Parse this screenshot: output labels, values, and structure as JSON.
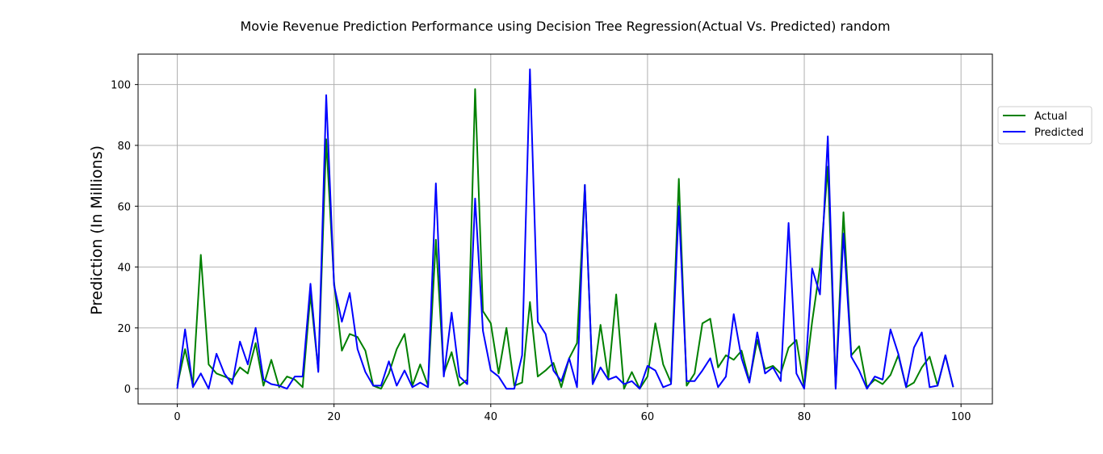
{
  "chart_data": {
    "type": "line",
    "title": "Movie Revenue Prediction Performance using Decision Tree Regression(Actual Vs. Predicted) random",
    "xlabel": "",
    "ylabel": "Prediction (In Millions)",
    "xlim": [
      -5,
      104
    ],
    "ylim": [
      -5,
      110
    ],
    "xticks": [
      0,
      20,
      40,
      60,
      80,
      100
    ],
    "yticks": [
      0,
      20,
      40,
      60,
      80,
      100
    ],
    "grid": true,
    "legend_position": "right",
    "x": [
      0,
      1,
      2,
      3,
      4,
      5,
      6,
      7,
      8,
      9,
      10,
      11,
      12,
      13,
      14,
      15,
      16,
      17,
      18,
      19,
      20,
      21,
      22,
      23,
      24,
      25,
      26,
      27,
      28,
      29,
      30,
      31,
      32,
      33,
      34,
      35,
      36,
      37,
      38,
      39,
      40,
      41,
      42,
      43,
      44,
      45,
      46,
      47,
      48,
      49,
      50,
      51,
      52,
      53,
      54,
      55,
      56,
      57,
      58,
      59,
      60,
      61,
      62,
      63,
      64,
      65,
      66,
      67,
      68,
      69,
      70,
      71,
      72,
      73,
      74,
      75,
      76,
      77,
      78,
      79,
      80,
      81,
      82,
      83,
      84,
      85,
      86,
      87,
      88,
      89,
      90,
      91,
      92,
      93,
      94,
      95,
      96,
      97,
      98,
      99
    ],
    "series": [
      {
        "name": "Actual",
        "color": "#008000",
        "values": [
          1,
          13,
          1,
          44,
          8,
          5,
          4,
          3,
          7,
          5,
          15,
          1,
          9.5,
          0.5,
          4,
          3,
          0.5,
          31,
          6,
          82,
          35,
          12.5,
          18,
          17,
          12.5,
          1,
          0,
          5,
          13,
          18,
          1,
          8,
          1,
          49,
          5,
          12,
          1,
          3,
          98.5,
          25.5,
          21.5,
          5,
          20,
          1,
          2,
          28.5,
          4,
          6,
          8.5,
          0.5,
          10,
          15,
          67,
          1.5,
          21,
          3.5,
          31,
          0,
          5.5,
          0,
          4,
          21.5,
          8,
          2,
          69,
          1,
          5,
          21.5,
          23,
          7,
          11,
          9.5,
          12.5,
          2.5,
          16,
          6.5,
          7.5,
          5,
          13.5,
          16,
          0.5,
          22,
          40,
          73,
          0.5,
          58,
          11,
          14,
          0.5,
          3,
          1.5,
          4.5,
          11,
          0.5,
          2,
          7,
          10.5,
          1,
          11,
          0.5
        ]
      },
      {
        "name": "Predicted",
        "color": "#0000ff",
        "values": [
          0,
          19.5,
          0.5,
          5,
          0,
          11.5,
          5,
          1.5,
          15.5,
          8,
          20,
          3,
          1.5,
          1,
          0,
          4,
          4,
          34.5,
          5.5,
          96.5,
          34,
          22,
          31.5,
          13,
          5.5,
          1,
          1,
          9,
          1,
          6,
          0.5,
          2,
          0.5,
          67.5,
          4,
          25,
          4,
          1.5,
          62.5,
          19,
          6,
          4,
          0,
          0,
          11,
          105,
          22,
          18,
          6,
          2.5,
          10,
          0.5,
          67,
          1.5,
          7,
          3,
          4,
          1.5,
          2.5,
          0,
          7.5,
          6,
          0.5,
          1.5,
          60,
          2.5,
          2.5,
          6,
          10,
          0.5,
          4,
          24.5,
          10,
          2,
          18.5,
          5,
          7,
          2.5,
          54.5,
          5,
          0,
          39.5,
          31,
          83,
          0,
          51,
          10.5,
          6,
          0,
          4,
          3,
          19.5,
          11.5,
          0.5,
          13.5,
          18.5,
          0.5,
          1,
          11,
          0.5
        ]
      }
    ]
  }
}
